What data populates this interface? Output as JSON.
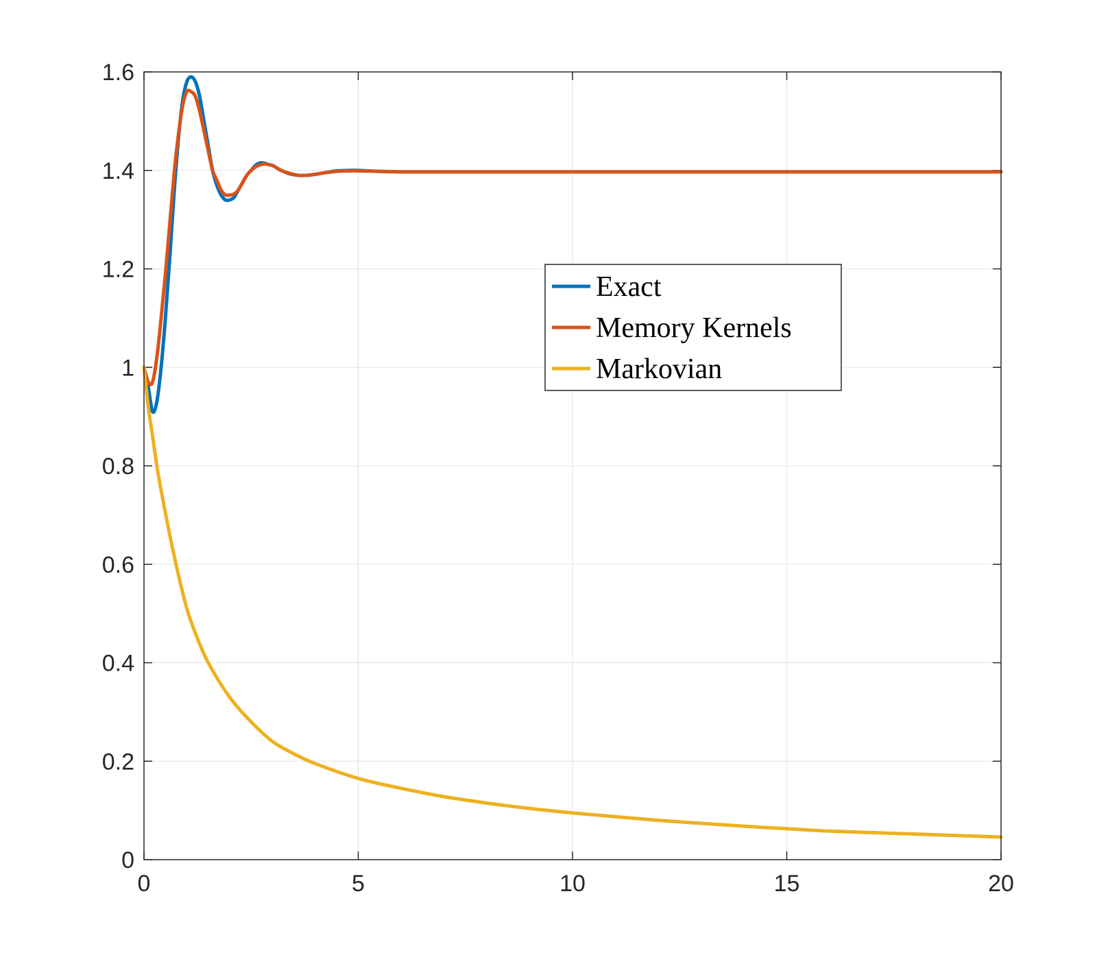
{
  "chart_data": {
    "type": "line",
    "title": "",
    "xlabel": "",
    "ylabel": "",
    "xlim": [
      0,
      20
    ],
    "ylim": [
      0,
      1.6
    ],
    "x_ticks": [
      0,
      5,
      10,
      15,
      20
    ],
    "y_ticks": [
      0,
      0.2,
      0.4,
      0.6,
      0.8,
      1,
      1.2,
      1.4,
      1.6
    ],
    "x_tick_labels": [
      "0",
      "5",
      "10",
      "15",
      "20"
    ],
    "y_tick_labels": [
      "0",
      "0.2",
      "0.4",
      "0.6",
      "0.8",
      "1",
      "1.2",
      "1.4",
      "1.6"
    ],
    "grid": true,
    "legend_position": "center-right",
    "series": [
      {
        "name": "Exact",
        "color": "#0072BD",
        "x": [
          0,
          0.1,
          0.2,
          0.3,
          0.4,
          0.5,
          0.6,
          0.7,
          0.8,
          0.9,
          1.0,
          1.1,
          1.2,
          1.3,
          1.4,
          1.5,
          1.6,
          1.7,
          1.8,
          1.9,
          2.0,
          2.1,
          2.2,
          2.3,
          2.4,
          2.5,
          2.6,
          2.7,
          2.8,
          2.9,
          3.0,
          3.1,
          3.2,
          3.4,
          3.6,
          3.8,
          4.0,
          4.2,
          4.5,
          4.8,
          5.0,
          5.5,
          6.0,
          7.0,
          8.0,
          10.0,
          12.0,
          15.0,
          20.0
        ],
        "y": [
          1.0,
          0.96,
          0.91,
          0.93,
          1.0,
          1.1,
          1.22,
          1.35,
          1.46,
          1.54,
          1.58,
          1.59,
          1.58,
          1.55,
          1.5,
          1.45,
          1.4,
          1.37,
          1.35,
          1.34,
          1.34,
          1.345,
          1.36,
          1.375,
          1.39,
          1.4,
          1.41,
          1.415,
          1.415,
          1.412,
          1.41,
          1.405,
          1.4,
          1.393,
          1.39,
          1.39,
          1.392,
          1.395,
          1.399,
          1.4,
          1.4,
          1.398,
          1.397,
          1.397,
          1.397,
          1.397,
          1.397,
          1.397,
          1.397
        ]
      },
      {
        "name": "Memory Kernels",
        "color": "#D95319",
        "x": [
          0,
          0.1,
          0.2,
          0.3,
          0.4,
          0.5,
          0.6,
          0.7,
          0.8,
          0.9,
          1.0,
          1.1,
          1.2,
          1.3,
          1.4,
          1.5,
          1.6,
          1.7,
          1.8,
          1.9,
          2.0,
          2.1,
          2.2,
          2.3,
          2.4,
          2.5,
          2.6,
          2.7,
          2.8,
          2.9,
          3.0,
          3.1,
          3.2,
          3.4,
          3.6,
          3.8,
          4.0,
          4.2,
          4.5,
          4.8,
          5.0,
          5.5,
          6.0,
          7.0,
          8.0,
          10.0,
          12.0,
          15.0,
          20.0
        ],
        "y": [
          1.0,
          0.97,
          0.97,
          1.02,
          1.1,
          1.19,
          1.29,
          1.39,
          1.47,
          1.53,
          1.56,
          1.56,
          1.55,
          1.52,
          1.48,
          1.44,
          1.4,
          1.38,
          1.36,
          1.35,
          1.35,
          1.352,
          1.36,
          1.375,
          1.39,
          1.4,
          1.407,
          1.411,
          1.413,
          1.412,
          1.41,
          1.405,
          1.4,
          1.394,
          1.39,
          1.39,
          1.392,
          1.395,
          1.398,
          1.399,
          1.399,
          1.398,
          1.397,
          1.397,
          1.397,
          1.397,
          1.397,
          1.397,
          1.397
        ]
      },
      {
        "name": "Markovian",
        "color": "#EDB120",
        "x": [
          0,
          0.1,
          0.2,
          0.3,
          0.4,
          0.6,
          0.8,
          1.0,
          1.2,
          1.5,
          2.0,
          2.5,
          3.0,
          3.5,
          4.0,
          5.0,
          6.0,
          7.0,
          8.0,
          9.0,
          10.0,
          12.0,
          14.0,
          15.0,
          16.0,
          18.0,
          20.0
        ],
        "y": [
          1.0,
          0.92,
          0.86,
          0.8,
          0.75,
          0.66,
          0.58,
          0.51,
          0.46,
          0.4,
          0.33,
          0.28,
          0.24,
          0.215,
          0.195,
          0.165,
          0.145,
          0.128,
          0.115,
          0.104,
          0.095,
          0.08,
          0.068,
          0.063,
          0.058,
          0.052,
          0.046
        ]
      }
    ]
  }
}
